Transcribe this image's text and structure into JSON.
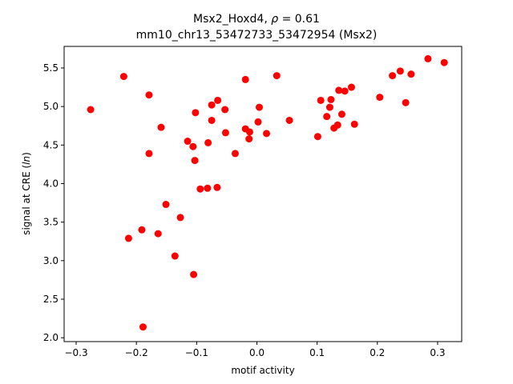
{
  "chart_data": {
    "type": "scatter",
    "title_line1_prefix": "Msx2_Hoxd4, ",
    "title_line1_rho": "ρ",
    "title_line1_suffix": " = 0.61",
    "title_line2": "mm10_chr13_53472733_53472954 (Msx2)",
    "xlabel": "motif activity",
    "ylabel_prefix": "signal at CRE (",
    "ylabel_italic": "ln",
    "ylabel_suffix": ")",
    "xlim": [
      -0.32,
      0.34
    ],
    "ylim": [
      1.95,
      5.78
    ],
    "xticks": [
      -0.3,
      -0.2,
      -0.1,
      0.0,
      0.1,
      0.2,
      0.3
    ],
    "xtick_labels": [
      "−0.3",
      "−0.2",
      "−0.1",
      "0.0",
      "0.1",
      "0.2",
      "0.3"
    ],
    "yticks": [
      2.0,
      2.5,
      3.0,
      3.5,
      4.0,
      4.5,
      5.0,
      5.5
    ],
    "ytick_labels": [
      "2.0",
      "2.5",
      "3.0",
      "3.5",
      "4.0",
      "4.5",
      "5.0",
      "5.5"
    ],
    "grid": false,
    "marker_color": "#ff0000",
    "points": [
      {
        "x": -0.276,
        "y": 4.96
      },
      {
        "x": -0.221,
        "y": 5.39
      },
      {
        "x": -0.179,
        "y": 5.15
      },
      {
        "x": -0.179,
        "y": 4.39
      },
      {
        "x": -0.159,
        "y": 4.73
      },
      {
        "x": -0.151,
        "y": 3.73
      },
      {
        "x": -0.213,
        "y": 3.29
      },
      {
        "x": -0.191,
        "y": 3.4
      },
      {
        "x": -0.164,
        "y": 3.35
      },
      {
        "x": -0.136,
        "y": 3.06
      },
      {
        "x": -0.127,
        "y": 3.56
      },
      {
        "x": -0.105,
        "y": 2.82
      },
      {
        "x": -0.189,
        "y": 2.14
      },
      {
        "x": -0.115,
        "y": 4.55
      },
      {
        "x": -0.106,
        "y": 4.48
      },
      {
        "x": -0.102,
        "y": 4.92
      },
      {
        "x": -0.103,
        "y": 4.3
      },
      {
        "x": -0.094,
        "y": 3.93
      },
      {
        "x": -0.082,
        "y": 3.94
      },
      {
        "x": -0.081,
        "y": 4.53
      },
      {
        "x": -0.075,
        "y": 5.02
      },
      {
        "x": -0.075,
        "y": 4.82
      },
      {
        "x": -0.065,
        "y": 5.08
      },
      {
        "x": -0.066,
        "y": 3.95
      },
      {
        "x": -0.053,
        "y": 4.96
      },
      {
        "x": -0.052,
        "y": 4.66
      },
      {
        "x": -0.036,
        "y": 4.39
      },
      {
        "x": -0.019,
        "y": 5.35
      },
      {
        "x": -0.019,
        "y": 4.71
      },
      {
        "x": -0.012,
        "y": 4.67
      },
      {
        "x": -0.013,
        "y": 4.58
      },
      {
        "x": 0.004,
        "y": 4.99
      },
      {
        "x": 0.002,
        "y": 4.8
      },
      {
        "x": 0.016,
        "y": 4.65
      },
      {
        "x": 0.033,
        "y": 5.4
      },
      {
        "x": 0.054,
        "y": 4.82
      },
      {
        "x": 0.101,
        "y": 4.61
      },
      {
        "x": 0.106,
        "y": 5.08
      },
      {
        "x": 0.116,
        "y": 4.87
      },
      {
        "x": 0.121,
        "y": 4.99
      },
      {
        "x": 0.123,
        "y": 5.09
      },
      {
        "x": 0.128,
        "y": 4.72
      },
      {
        "x": 0.134,
        "y": 4.76
      },
      {
        "x": 0.136,
        "y": 5.21
      },
      {
        "x": 0.141,
        "y": 4.9
      },
      {
        "x": 0.146,
        "y": 5.2
      },
      {
        "x": 0.157,
        "y": 5.25
      },
      {
        "x": 0.162,
        "y": 4.77
      },
      {
        "x": 0.204,
        "y": 5.12
      },
      {
        "x": 0.225,
        "y": 5.4
      },
      {
        "x": 0.238,
        "y": 5.46
      },
      {
        "x": 0.247,
        "y": 5.05
      },
      {
        "x": 0.256,
        "y": 5.42
      },
      {
        "x": 0.284,
        "y": 5.62
      },
      {
        "x": 0.311,
        "y": 5.57
      }
    ]
  }
}
